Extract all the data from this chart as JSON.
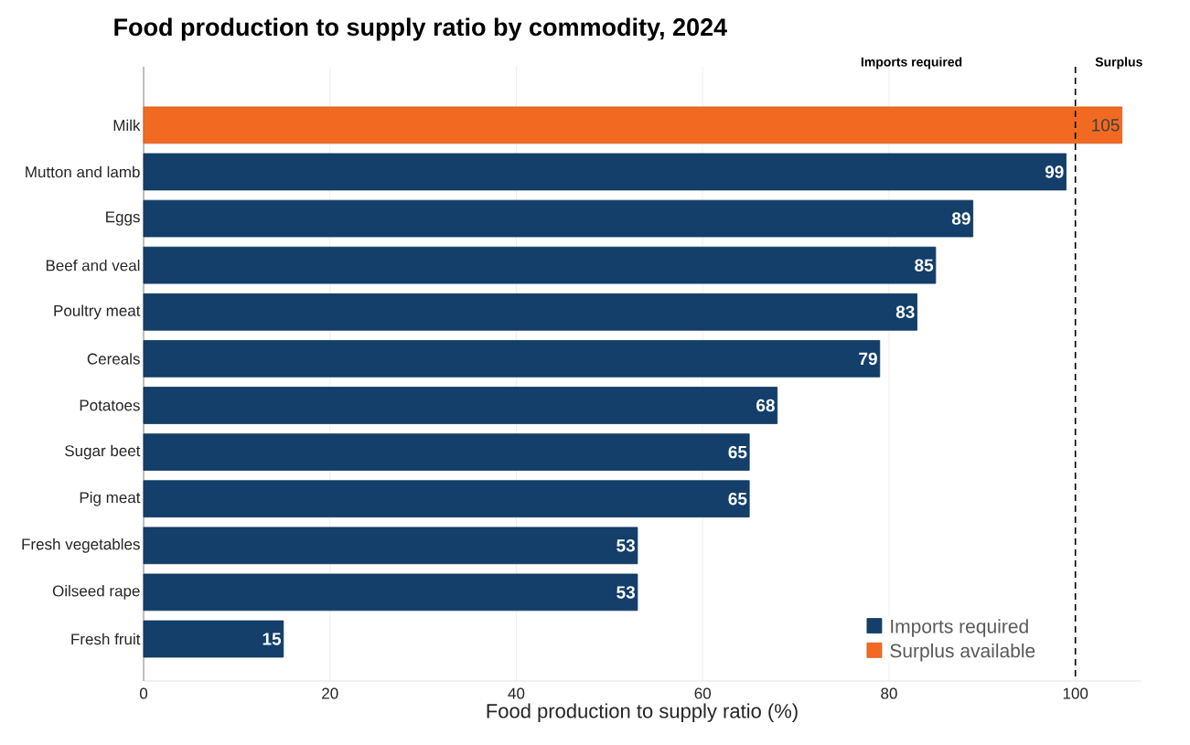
{
  "chart_data": {
    "type": "bar",
    "orientation": "horizontal",
    "title": "Food production to supply ratio by commodity, 2024",
    "xlabel": "Food production to supply ratio (%)",
    "categories": [
      "Milk",
      "Mutton and lamb",
      "Eggs",
      "Beef and veal",
      "Poultry meat",
      "Cereals",
      "Potatoes",
      "Sugar beet",
      "Pig meat",
      "Fresh vegetables",
      "Oilseed rape",
      "Fresh fruit"
    ],
    "series": [
      {
        "name": "Imports required",
        "color": "#133f6a",
        "values": [
          null,
          99,
          89,
          85,
          83,
          79,
          68,
          65,
          65,
          53,
          53,
          15
        ]
      },
      {
        "name": "Surplus available",
        "color": "#f26a21",
        "values": [
          105,
          null,
          null,
          null,
          null,
          null,
          null,
          null,
          null,
          null,
          null,
          null
        ]
      }
    ],
    "xlim": [
      0,
      107
    ],
    "xticks": [
      0,
      20,
      40,
      60,
      80,
      100
    ],
    "grid": "x",
    "legend": "bottom right",
    "data_labels": true,
    "ref_lines": [
      {
        "axis": "x",
        "value": 100,
        "label": null,
        "color": "#000000",
        "line_style": "dashed"
      }
    ],
    "annotations": [
      "Imports required",
      "Surplus"
    ]
  }
}
